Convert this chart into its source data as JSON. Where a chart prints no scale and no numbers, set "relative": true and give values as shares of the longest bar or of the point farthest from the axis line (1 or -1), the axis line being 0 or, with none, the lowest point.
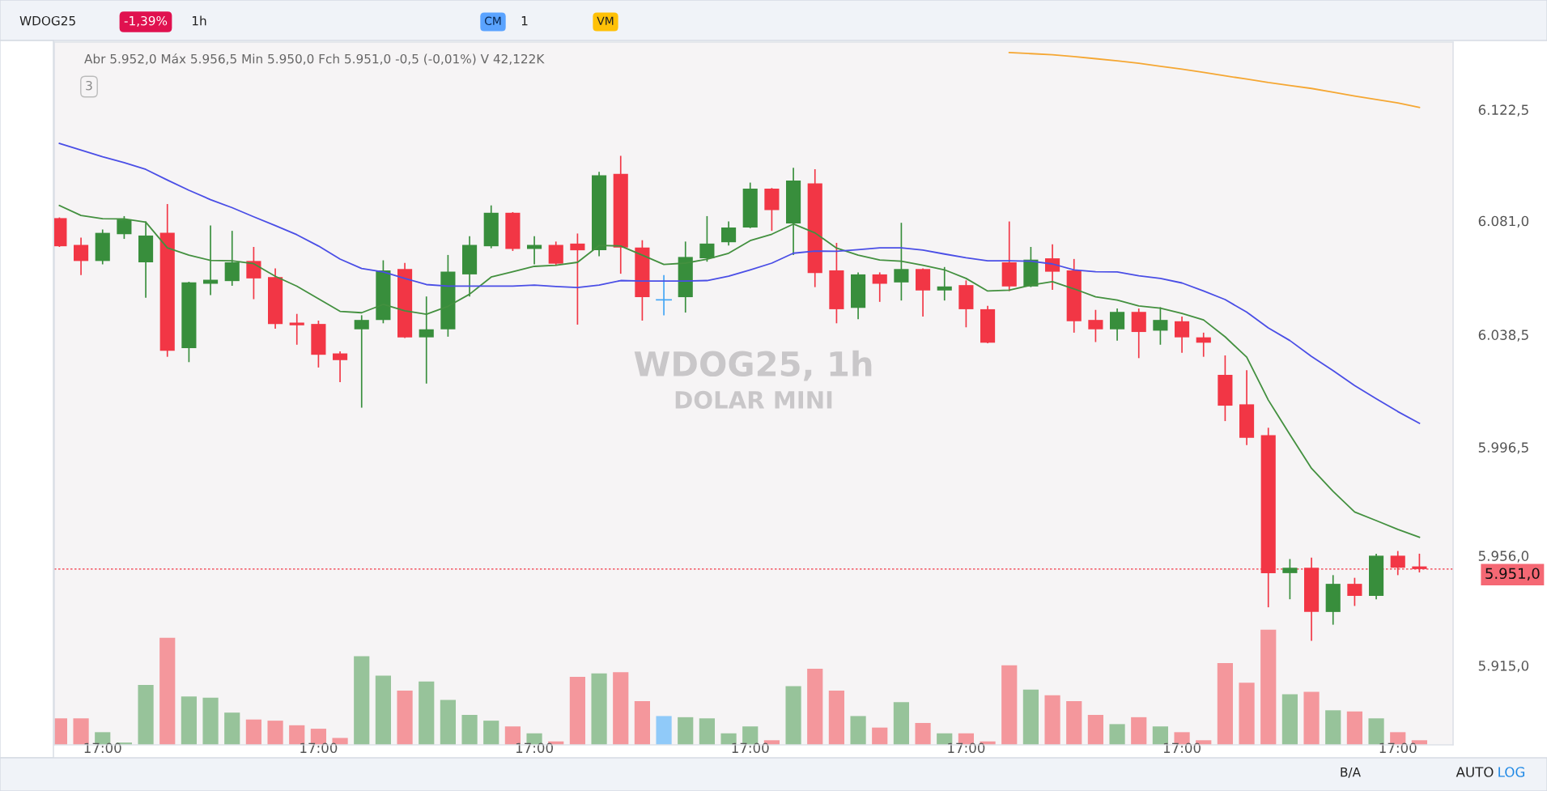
{
  "chart_data": [
    {
      "type": "candlestick",
      "title": "WDOG25, 1h",
      "subtitle": "DOLAR MINI",
      "annotations": [
        "Abr 5.952,0 Máx 5.956,5 Min 5.950,0 Fch 5.951,0 -0,5 (-0,01%) V 42,122K",
        "WDOG25",
        "-1,39%",
        "1h",
        "CM",
        "1",
        "VM",
        "3",
        "B/A",
        "AUTO",
        "LOG"
      ],
      "categories": [
        null,
        null,
        "17:00",
        null,
        null,
        null,
        null,
        null,
        null,
        null,
        null,
        null,
        "17:00",
        null,
        null,
        null,
        null,
        null,
        null,
        null,
        null,
        null,
        "17:00",
        null,
        null,
        null,
        null,
        null,
        null,
        null,
        null,
        null,
        "17:00",
        null,
        null,
        null,
        null,
        null,
        null,
        null,
        null,
        null,
        "17:00",
        null,
        null,
        null,
        null,
        null,
        null,
        null,
        null,
        null,
        "17:00",
        null,
        null,
        null,
        null,
        null,
        null,
        null,
        null,
        null,
        "17:00",
        null
      ],
      "ohlc": [
        [
          6082,
          6082,
          6071.5,
          6071.5
        ],
        [
          6072,
          6074.5,
          6061,
          6066
        ],
        [
          6066,
          6077.5,
          6065,
          6076.5
        ],
        [
          6076,
          6082.5,
          6074.5,
          6081.5
        ],
        [
          6065.5,
          6080.5,
          6052.5,
          6075.5
        ],
        [
          6076.5,
          6087,
          6030.5,
          6032.5
        ],
        [
          6033.5,
          6058,
          6028.5,
          6058
        ],
        [
          6057.5,
          6079,
          6053.5,
          6059
        ],
        [
          6058.5,
          6077,
          6057,
          6065.5
        ],
        [
          6066,
          6071,
          6052,
          6059.5
        ],
        [
          6060,
          6063,
          6041,
          6042.5
        ],
        [
          6043,
          6046,
          6035,
          6042
        ],
        [
          6042.5,
          6043.5,
          6026.5,
          6031
        ],
        [
          6031.5,
          6032,
          6021,
          6029
        ],
        [
          6040.5,
          6045.5,
          6011.5,
          6044
        ],
        [
          6044,
          6066,
          6043,
          6062.5
        ],
        [
          6063,
          6065,
          6037.5,
          6037.5
        ],
        [
          6037.5,
          6052.5,
          6020.5,
          6040.5
        ],
        [
          6040.5,
          6068,
          6038,
          6062
        ],
        [
          6061,
          6075,
          6053,
          6072
        ],
        [
          6071.5,
          6086.5,
          6071,
          6084
        ],
        [
          6084,
          6084,
          6070,
          6070.5
        ],
        [
          6070.5,
          6075,
          6065,
          6072
        ],
        [
          6072,
          6073,
          6064.5,
          6065
        ],
        [
          6072.5,
          6076,
          6042.5,
          6070
        ],
        [
          6070,
          6099,
          6068,
          6098
        ],
        [
          6098.5,
          6105,
          6061.5,
          6071
        ],
        [
          6071,
          6073.5,
          6044,
          6052.5
        ],
        [
          6051.5,
          6060.5,
          6046,
          6051.5
        ],
        [
          6052.5,
          6073,
          6047,
          6067.5
        ],
        [
          6067,
          6082.5,
          6066,
          6072.5
        ],
        [
          6073,
          6080.5,
          6072,
          6078.5
        ],
        [
          6078.5,
          6095,
          6078.5,
          6093
        ],
        [
          6093,
          6093,
          6077.5,
          6085
        ],
        [
          6080,
          6100.5,
          6068.5,
          6096
        ],
        [
          6095,
          6100,
          6056.5,
          6061.5
        ],
        [
          6062.5,
          6072.5,
          6043,
          6048
        ],
        [
          6048.5,
          6061.5,
          6044.5,
          6061
        ],
        [
          6061,
          6061.5,
          6051,
          6057.5
        ],
        [
          6058,
          6080,
          6051.5,
          6063
        ],
        [
          6063,
          6063,
          6045.5,
          6055
        ],
        [
          6055,
          6063.5,
          6051.5,
          6056.5
        ],
        [
          6057,
          6058.5,
          6041.5,
          6048
        ],
        [
          6048,
          6049,
          6035.5,
          6035.5
        ],
        [
          6065.5,
          6080.5,
          6055,
          6056.5
        ],
        [
          6056.5,
          6071,
          6056.5,
          6066.5
        ],
        [
          6067,
          6072,
          6055.5,
          6062
        ],
        [
          6062.5,
          6066.5,
          6039.5,
          6043.5
        ],
        [
          6044,
          6047.5,
          6036,
          6040.5
        ],
        [
          6040.5,
          6048,
          6036.5,
          6047
        ],
        [
          6047,
          6048,
          6030,
          6039.5
        ],
        [
          6040,
          6048.5,
          6035,
          6044
        ],
        [
          6043.5,
          6045,
          6032,
          6037.5
        ],
        [
          6037.5,
          6039,
          6030.5,
          6035.5
        ],
        [
          6023.5,
          6030.5,
          6006.5,
          6012
        ],
        [
          6012.5,
          6025,
          5997.5,
          6000
        ],
        [
          6001,
          6003.5,
          5937,
          5949.5
        ],
        [
          5949.5,
          5954.5,
          5940,
          5951.5
        ],
        [
          5951.5,
          5955,
          5924.5,
          5935
        ],
        [
          5935,
          5948.5,
          5930.5,
          5945.5
        ],
        [
          5945.5,
          5947.5,
          5937.5,
          5941
        ],
        [
          5941,
          5956.5,
          5940,
          5956
        ],
        [
          5956,
          5957.5,
          5949,
          5951.5
        ],
        [
          5952,
          5956.5,
          5950,
          5951
        ]
      ],
      "colors": [
        "#f23645",
        "#f23645",
        "#388e3c",
        "#388e3c",
        "#388e3c",
        "#f23645",
        "#388e3c",
        "#388e3c",
        "#388e3c",
        "#f23645",
        "#f23645",
        "#f23645",
        "#f23645",
        "#f23645",
        "#388e3c",
        "#388e3c",
        "#f23645",
        "#388e3c",
        "#388e3c",
        "#388e3c",
        "#388e3c",
        "#f23645",
        "#388e3c",
        "#f23645",
        "#f23645",
        "#388e3c",
        "#f23645",
        "#f23645",
        "#42a5f5",
        "#388e3c",
        "#388e3c",
        "#388e3c",
        "#388e3c",
        "#f23645",
        "#388e3c",
        "#f23645",
        "#f23645",
        "#388e3c",
        "#f23645",
        "#388e3c",
        "#f23645",
        "#388e3c",
        "#f23645",
        "#f23645",
        "#f23645",
        "#388e3c",
        "#f23645",
        "#f23645",
        "#f23645",
        "#388e3c",
        "#f23645",
        "#388e3c",
        "#f23645",
        "#f23645",
        "#f23645",
        "#f23645",
        "#f23645",
        "#388e3c",
        "#f23645",
        "#388e3c",
        "#f23645",
        "#388e3c",
        "#f23645",
        "#f23645"
      ],
      "series": [
        {
          "type": "line",
          "color": "#43903f",
          "values": [
            6086.7,
            6083.0,
            6081.8,
            6081.7,
            6080.5,
            6070.9,
            6068.2,
            6066.2,
            6066.1,
            6065.0,
            6060.3,
            6056.6,
            6051.9,
            6047.2,
            6046.7,
            6049.8,
            6047.4,
            6046.1,
            6049.1,
            6053.6,
            6060.0,
            6062.0,
            6064.0,
            6064.4,
            6065.5,
            6071.8,
            6071.6,
            6068.2,
            6064.7,
            6065.2,
            6066.7,
            6068.9,
            6073.6,
            6076.0,
            6079.8,
            6076.5,
            6070.8,
            6068.2,
            6066.4,
            6065.9,
            6064.4,
            6062.7,
            6059.5,
            6054.8,
            6055.1,
            6057.0,
            6058.3,
            6055.6,
            6052.6,
            6051.4,
            6049.2,
            6048.4,
            6046.4,
            6044.0,
            6037.7,
            6030.1,
            6014.1,
            6001.2,
            5988.6,
            5980.0,
            5972.3,
            5969.1,
            5965.8,
            5962.9
          ]
        },
        {
          "type": "line",
          "color": "#4a4ee6",
          "values": [
            6109.9,
            6107.4,
            6104.9,
            6102.7,
            6100.2,
            6096.2,
            6092.4,
            6088.9,
            6085.9,
            6082.5,
            6079.2,
            6075.8,
            6071.6,
            6066.7,
            6063.2,
            6061.9,
            6059.5,
            6057.2,
            6056.6,
            6056.6,
            6056.6,
            6056.6,
            6057.0,
            6056.5,
            6056.1,
            6057.0,
            6058.7,
            6058.5,
            6058.5,
            6058.5,
            6058.7,
            6060.3,
            6062.7,
            6065.2,
            6068.9,
            6069.7,
            6069.6,
            6070.2,
            6070.9,
            6070.9,
            6070.1,
            6068.6,
            6067.2,
            6066.1,
            6066.1,
            6065.9,
            6064.9,
            6062.7,
            6062.0,
            6061.9,
            6060.5,
            6059.5,
            6057.8,
            6054.8,
            6051.6,
            6046.9,
            6041.0,
            6036.3,
            6030.4,
            6025.1,
            6019.5,
            6014.6,
            6009.8,
            6005.4
          ]
        },
        {
          "type": "line",
          "color": "#f5a733",
          "values": [
            null,
            null,
            null,
            null,
            null,
            null,
            null,
            null,
            null,
            null,
            null,
            null,
            null,
            null,
            null,
            null,
            null,
            null,
            null,
            null,
            null,
            null,
            null,
            null,
            null,
            null,
            null,
            null,
            null,
            null,
            null,
            null,
            null,
            null,
            null,
            null,
            null,
            null,
            null,
            null,
            null,
            null,
            null,
            null,
            6143.8,
            6143.4,
            6143.0,
            6142.3,
            6141.5,
            6140.7,
            6139.8,
            6138.7,
            6137.6,
            6136.4,
            6135.1,
            6133.9,
            6132.6,
            6131.5,
            6130.4,
            6129.0,
            6127.6,
            6126.3,
            6125.0,
            6123.3
          ]
        }
      ],
      "ylim": [
        5885.4,
        6147.7
      ],
      "yticks": [
        {
          "value": 5915.0,
          "label": "5.915,0"
        },
        {
          "value": 5956.0,
          "label": "5.956,0"
        },
        {
          "value": 5996.5,
          "label": "5.996,5"
        },
        {
          "value": 6038.5,
          "label": "6.038,5"
        },
        {
          "value": 6081.0,
          "label": "6.081,0"
        },
        {
          "value": 6122.5,
          "label": "6.122,5"
        }
      ],
      "ref_lines": [
        {
          "axis": "y",
          "value": 5951.0,
          "label": "5.951,0",
          "color": "#f23645",
          "line_style": "dotted"
        }
      ]
    },
    {
      "type": "bar",
      "relative": true,
      "categories": [
        null,
        null,
        null,
        null,
        null,
        null,
        null,
        null,
        null,
        null,
        null,
        null,
        null,
        null,
        null,
        null,
        null,
        null,
        null,
        null,
        null,
        null,
        null,
        null,
        null,
        null,
        null,
        null,
        null,
        null,
        null,
        null,
        null,
        null,
        null,
        null,
        null,
        null,
        null,
        null,
        null,
        null,
        null,
        null,
        null,
        null,
        null,
        null,
        null,
        null,
        null,
        null,
        null,
        null,
        null,
        null,
        null,
        null,
        null,
        null,
        null,
        null,
        null,
        null
      ],
      "values": [
        0.23,
        0.23,
        0.11,
        0.02,
        0.52,
        0.93,
        0.42,
        0.41,
        0.28,
        0.22,
        0.21,
        0.17,
        0.14,
        0.06,
        0.77,
        0.6,
        0.47,
        0.55,
        0.39,
        0.26,
        0.21,
        0.16,
        0.1,
        0.03,
        0.59,
        0.62,
        0.63,
        0.38,
        0.25,
        0.24,
        0.23,
        0.1,
        0.16,
        0.04,
        0.51,
        0.66,
        0.47,
        0.25,
        0.15,
        0.37,
        0.19,
        0.1,
        0.1,
        0.03,
        0.69,
        0.48,
        0.43,
        0.38,
        0.26,
        0.18,
        0.24,
        0.16,
        0.11,
        0.04,
        0.71,
        0.54,
        1,
        0.44,
        0.46,
        0.3,
        0.29,
        0.23,
        0.11,
        0.04
      ],
      "colors": [
        "#f4979c",
        "#f4979c",
        "#97c39a",
        "#97c39a",
        "#97c39a",
        "#f4979c",
        "#97c39a",
        "#97c39a",
        "#97c39a",
        "#f4979c",
        "#f4979c",
        "#f4979c",
        "#f4979c",
        "#f4979c",
        "#97c39a",
        "#97c39a",
        "#f4979c",
        "#97c39a",
        "#97c39a",
        "#97c39a",
        "#97c39a",
        "#f4979c",
        "#97c39a",
        "#f4979c",
        "#f4979c",
        "#97c39a",
        "#f4979c",
        "#f4979c",
        "#90caf9",
        "#97c39a",
        "#97c39a",
        "#97c39a",
        "#97c39a",
        "#f4979c",
        "#97c39a",
        "#f4979c",
        "#f4979c",
        "#97c39a",
        "#f4979c",
        "#97c39a",
        "#f4979c",
        "#97c39a",
        "#f4979c",
        "#f4979c",
        "#f4979c",
        "#97c39a",
        "#f4979c",
        "#f4979c",
        "#f4979c",
        "#97c39a",
        "#f4979c",
        "#97c39a",
        "#f4979c",
        "#f4979c",
        "#f4979c",
        "#f4979c",
        "#f4979c",
        "#97c39a",
        "#f4979c",
        "#97c39a",
        "#f4979c",
        "#97c39a",
        "#f4979c",
        "#f4979c"
      ]
    }
  ]
}
